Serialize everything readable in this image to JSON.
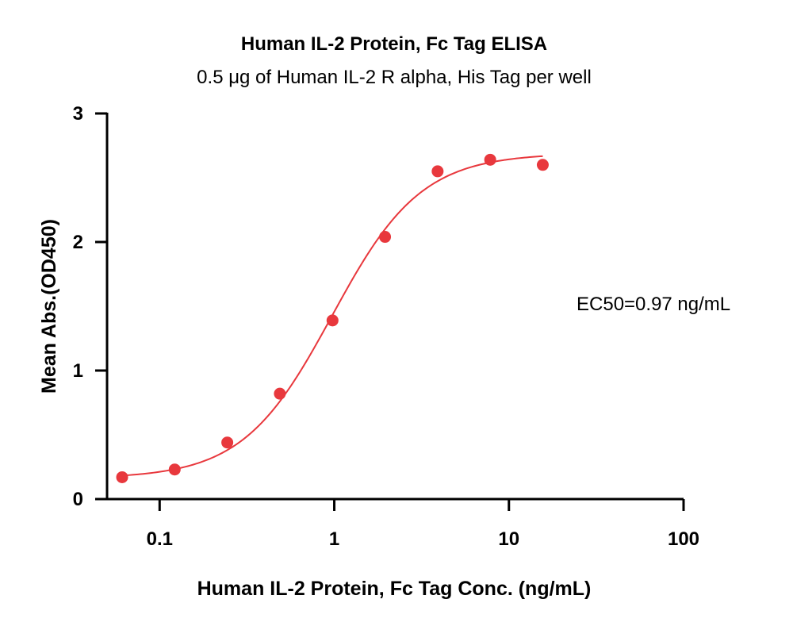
{
  "chart_data": {
    "type": "scatter",
    "title": "Human IL-2 Protein, Fc Tag ELISA",
    "subtitle": "0.5 μg of Human IL-2 R alpha, His Tag per well",
    "xlabel": "Human IL-2 Protein, Fc Tag Conc. (ng/mL)",
    "ylabel": "Mean Abs.(OD450)",
    "x_scale": "log",
    "xlim": [
      0.05,
      100
    ],
    "ylim": [
      0,
      3
    ],
    "x_ticks": [
      0.1,
      1,
      10,
      100
    ],
    "x_tick_labels": [
      "0.1",
      "1",
      "10",
      "100"
    ],
    "y_ticks": [
      0,
      1,
      2,
      3
    ],
    "y_tick_labels": [
      "0",
      "1",
      "2",
      "3"
    ],
    "grid": false,
    "annotation": "EC50=0.97 ng/mL",
    "points": {
      "x": [
        0.061,
        0.122,
        0.244,
        0.488,
        0.977,
        1.953,
        3.906,
        7.813,
        15.625
      ],
      "y": [
        0.17,
        0.23,
        0.44,
        0.82,
        1.39,
        2.04,
        2.55,
        2.64,
        2.6
      ]
    },
    "fit": {
      "model": "4PL",
      "bottom": 0.16,
      "top": 2.69,
      "ec50": 0.97,
      "hill": 1.7,
      "x_range": [
        0.061,
        15.625
      ]
    },
    "colors": {
      "series": "#e8383d",
      "axis": "#000000"
    }
  }
}
